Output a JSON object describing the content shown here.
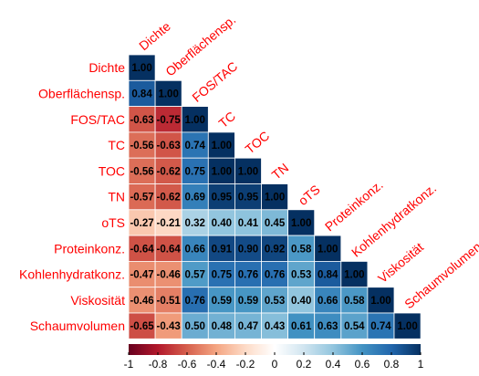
{
  "chart_data": {
    "type": "heatmap",
    "variables": [
      "Dichte",
      "Oberflächensp.",
      "FOS/TAC",
      "TC",
      "TOC",
      "TN",
      "oTS",
      "Proteinkonz.",
      "Kohlenhydratkonz.",
      "Viskosität",
      "Schaumvolumen"
    ],
    "lower_triangle_values": [
      [
        1.0
      ],
      [
        0.84,
        1.0
      ],
      [
        -0.63,
        -0.75,
        1.0
      ],
      [
        -0.56,
        -0.63,
        0.74,
        1.0
      ],
      [
        -0.56,
        -0.62,
        0.75,
        1.0,
        1.0
      ],
      [
        -0.57,
        -0.62,
        0.69,
        0.95,
        0.95,
        1.0
      ],
      [
        -0.27,
        -0.21,
        0.32,
        0.4,
        0.41,
        0.45,
        1.0
      ],
      [
        -0.64,
        -0.64,
        0.66,
        0.91,
        0.9,
        0.92,
        0.58,
        1.0
      ],
      [
        -0.47,
        -0.46,
        0.57,
        0.75,
        0.76,
        0.76,
        0.53,
        0.84,
        1.0
      ],
      [
        -0.46,
        -0.51,
        0.76,
        0.59,
        0.59,
        0.53,
        0.4,
        0.66,
        0.58,
        1.0
      ],
      [
        -0.65,
        -0.43,
        0.5,
        0.48,
        0.47,
        0.43,
        0.61,
        0.63,
        0.54,
        0.74,
        1.0
      ]
    ],
    "color_scale": {
      "min": -1,
      "max": 1,
      "tick_labels": [
        "-1",
        "-0.8",
        "-0.6",
        "-0.4",
        "-0.2",
        "0",
        "0.2",
        "0.4",
        "0.6",
        "0.8",
        "1"
      ],
      "stops": [
        "#67001f",
        "#b2182b",
        "#d6604d",
        "#f4a582",
        "#fddbc7",
        "#ffffff",
        "#d1e5f0",
        "#92c5de",
        "#4393c3",
        "#2166ac",
        "#053061"
      ]
    },
    "label_color": "#ff0000",
    "legend_position": "bottom"
  }
}
